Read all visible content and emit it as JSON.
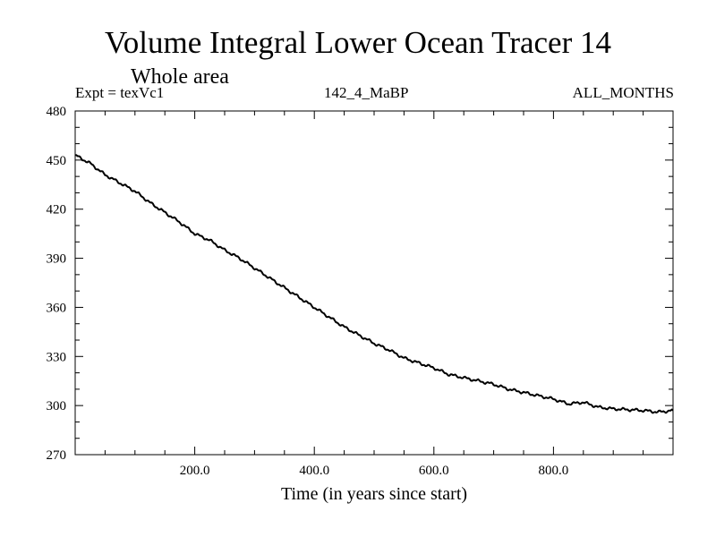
{
  "chart_data": {
    "type": "line",
    "title": "Volume Integral Lower Ocean Tracer 14",
    "subtitle": "Whole area",
    "annotations": {
      "left": "Expt = texVc1",
      "center": "142_4_MaBP",
      "right": "ALL_MONTHS"
    },
    "xlabel": "Time (in years since start)",
    "ylabel": "",
    "xlim": [
      0,
      1000
    ],
    "ylim": [
      270,
      480
    ],
    "x_ticks": [
      200,
      400,
      600,
      800
    ],
    "x_tick_labels": [
      "200.0",
      "400.0",
      "600.0",
      "800.0"
    ],
    "y_ticks": [
      270,
      300,
      330,
      360,
      390,
      420,
      450,
      480
    ],
    "y_tick_labels": [
      "270",
      "300",
      "330",
      "360",
      "390",
      "420",
      "450",
      "480"
    ],
    "grid": false,
    "series": [
      {
        "name": "Tracer 14",
        "color": "#000000",
        "x": [
          0,
          25,
          50,
          75,
          100,
          125,
          150,
          175,
          200,
          225,
          250,
          275,
          300,
          325,
          350,
          375,
          400,
          425,
          450,
          475,
          500,
          525,
          550,
          575,
          600,
          625,
          650,
          675,
          700,
          725,
          750,
          775,
          800,
          825,
          850,
          875,
          900,
          925,
          950,
          975,
          1000
        ],
        "values": [
          453,
          448,
          441,
          436,
          431,
          424,
          418,
          412,
          405,
          401,
          395,
          390,
          384,
          378,
          372,
          366,
          360,
          354,
          348,
          343,
          338,
          334,
          329,
          326,
          323,
          319,
          317,
          315,
          313,
          310,
          308,
          306,
          304,
          301,
          302,
          299,
          298,
          297.5,
          297,
          296,
          297
        ]
      }
    ]
  }
}
